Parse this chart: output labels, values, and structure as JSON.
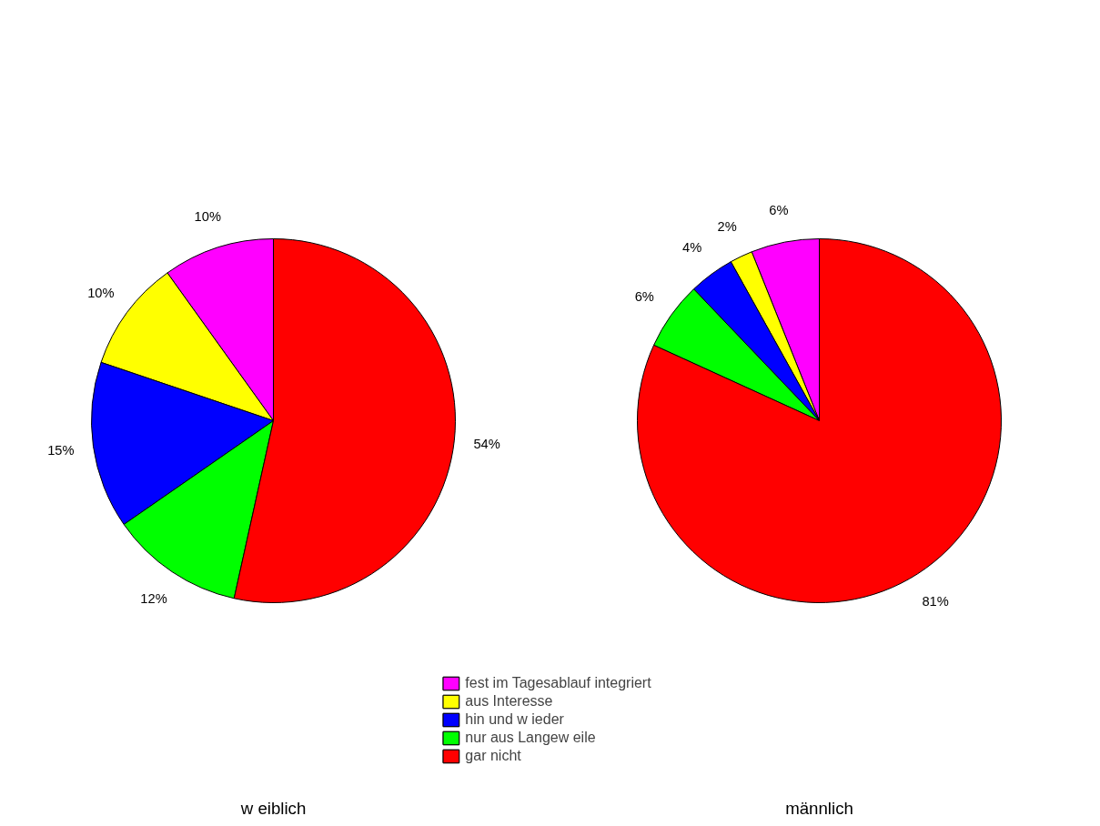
{
  "chart_data": [
    {
      "type": "pie",
      "xlabel": "w eiblich",
      "categories": [
        "fest im Tagesablauf integriert",
        "aus Interesse",
        "hin und w ieder",
        "nur aus Langew eile",
        "gar nicht"
      ],
      "values": [
        10,
        10,
        15,
        12,
        54
      ],
      "value_labels": [
        "10%",
        "10%",
        "15%",
        "12%",
        "54%"
      ],
      "colors": [
        "#ff00ff",
        "#ffff00",
        "#0000ff",
        "#00ff00",
        "#ff0000"
      ],
      "legend": "bottom"
    },
    {
      "type": "pie",
      "xlabel": "männlich",
      "categories": [
        null,
        null,
        null,
        null,
        null
      ],
      "values": [
        6,
        2,
        4,
        6,
        81
      ],
      "value_labels": [
        "6%",
        "2%",
        "4%",
        "6%",
        "81%"
      ],
      "colors": [
        "#ff00ff",
        "#ffff00",
        "#0000ff",
        "#00ff00",
        "#ff0000"
      ]
    }
  ]
}
